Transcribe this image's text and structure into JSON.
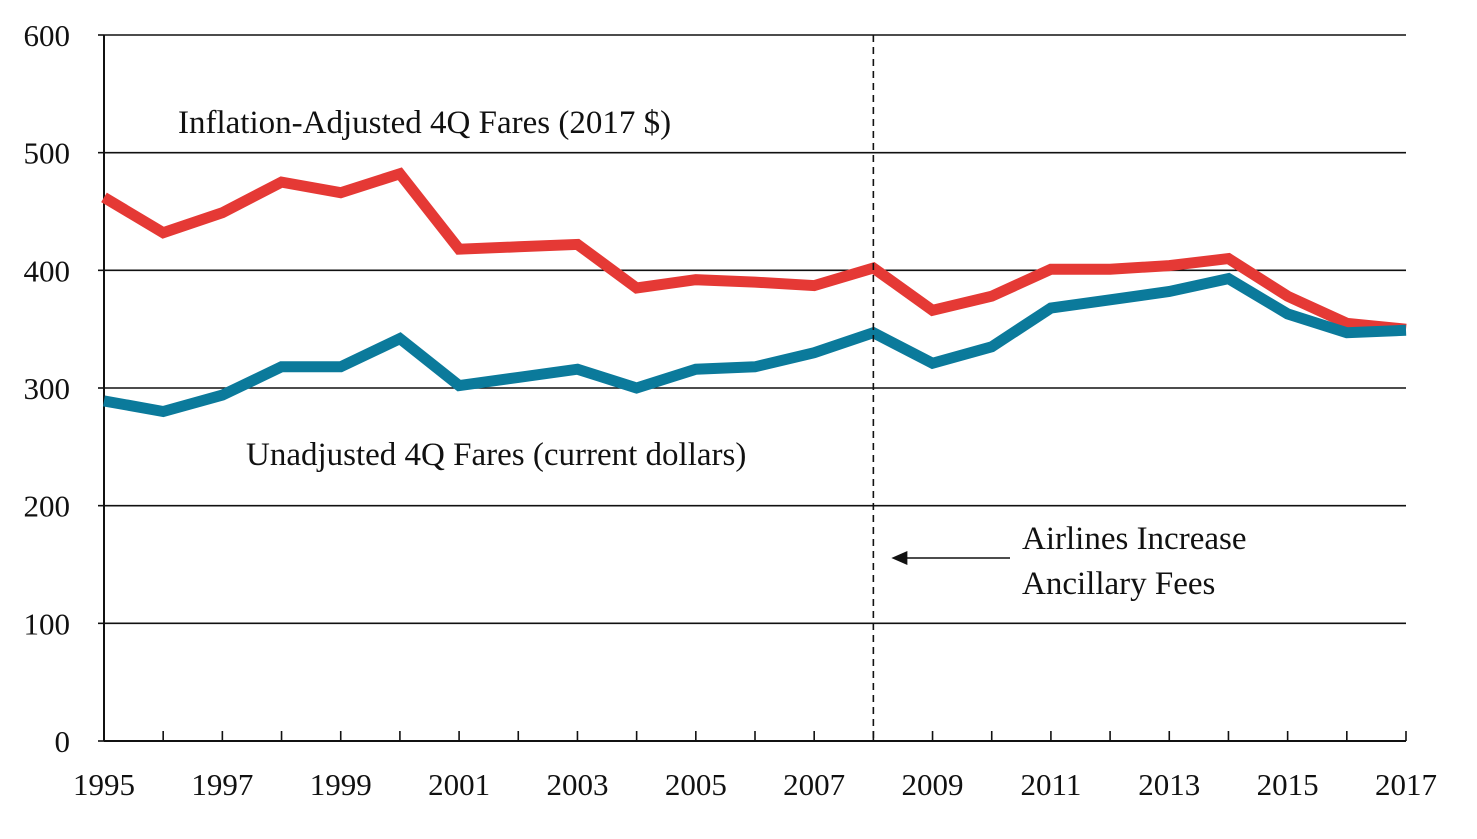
{
  "chart_data": {
    "type": "line",
    "title": "",
    "xlabel": "",
    "ylabel": "",
    "xlim": [
      1995,
      2017
    ],
    "ylim": [
      0,
      600
    ],
    "yticks": [
      0,
      100,
      200,
      300,
      400,
      500,
      600
    ],
    "xticks": [
      1995,
      1997,
      1999,
      2001,
      2003,
      2005,
      2007,
      2009,
      2011,
      2013,
      2015,
      2017
    ],
    "grid": "horizontal",
    "x": [
      1995,
      1996,
      1997,
      1998,
      1999,
      2000,
      2001,
      2002,
      2003,
      2004,
      2005,
      2006,
      2007,
      2008,
      2009,
      2010,
      2011,
      2012,
      2013,
      2014,
      2015,
      2016,
      2017
    ],
    "series": [
      {
        "name": "Inflation-Adjusted 4Q Fares (2017 $)",
        "color": "#e53935",
        "values": [
          462,
          432,
          449,
          475,
          466,
          482,
          418,
          420,
          422,
          385,
          392,
          390,
          387,
          402,
          366,
          378,
          401,
          401,
          404,
          410,
          378,
          355,
          350
        ]
      },
      {
        "name": "Unadjusted 4Q Fares (current dollars)",
        "color": "#0b7a9b",
        "values": [
          289,
          280,
          294,
          318,
          318,
          342,
          302,
          309,
          316,
          300,
          316,
          318,
          330,
          347,
          321,
          335,
          368,
          375,
          382,
          393,
          363,
          347,
          349
        ]
      }
    ],
    "annotations": {
      "marker_year": 2008,
      "marker_text_line1": "Airlines Increase",
      "marker_text_line2": "Ancillary Fees"
    }
  }
}
